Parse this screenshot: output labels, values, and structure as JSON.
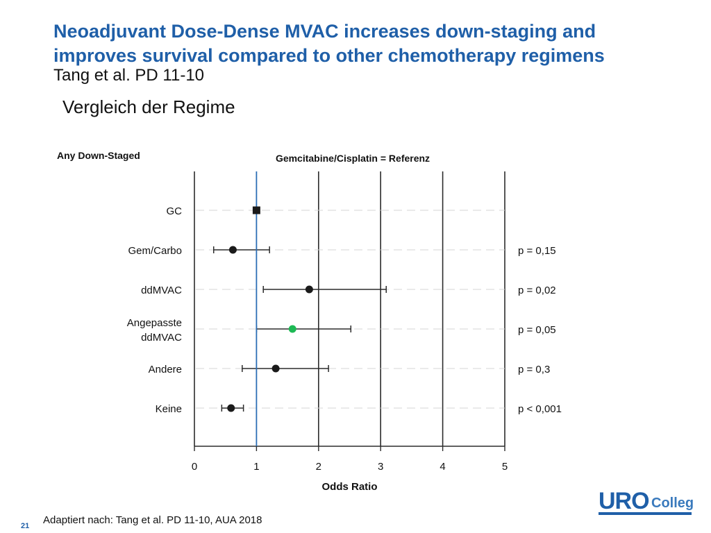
{
  "slide": {
    "title_line1": "Neoadjuvant Dose-Dense MVAC increases down-staging and",
    "title_line2": "improves survival compared to other chemotherapy regimens",
    "reference": "Tang et al. PD 11-10",
    "subtitle": "Vergleich der Regime",
    "footnote": "Adaptiert nach: Tang et al. PD 11-10, AUA 2018",
    "page_number": "21",
    "logo_uro": "URO",
    "logo_colleg": "Colleg"
  },
  "colors": {
    "title": "#1f5fa8",
    "reference_line": "#2a6db5",
    "highlight_point": "#1db954",
    "point": "#1a1a1a"
  },
  "chart_data": {
    "type": "forest",
    "panel_label": "Any Down-Staged",
    "title": "Gemcitabine/Cisplatin = Referenz",
    "xlabel": "Odds Ratio",
    "xlim": [
      0,
      5
    ],
    "xticks": [
      0,
      1,
      2,
      3,
      4,
      5
    ],
    "reference_value": 1,
    "rows": [
      {
        "label": [
          "GC"
        ],
        "or": 1.0,
        "ci_low": null,
        "ci_high": null,
        "p": "",
        "marker": "square",
        "highlight": false
      },
      {
        "label": [
          "Gem/Carbo"
        ],
        "or": 0.62,
        "ci_low": 0.31,
        "ci_high": 1.21,
        "p": "p = 0,15",
        "marker": "circle",
        "highlight": false
      },
      {
        "label": [
          "ddMVAC"
        ],
        "or": 1.85,
        "ci_low": 1.11,
        "ci_high": 3.09,
        "p": "p = 0,02",
        "marker": "circle",
        "highlight": false
      },
      {
        "label": [
          "Angepasste",
          "ddMVAC"
        ],
        "or": 1.58,
        "ci_low": 1.0,
        "ci_high": 2.52,
        "p": "p = 0,05",
        "marker": "circle",
        "highlight": true
      },
      {
        "label": [
          "Andere"
        ],
        "or": 1.31,
        "ci_low": 0.77,
        "ci_high": 2.16,
        "p": "p = 0,3",
        "marker": "circle",
        "highlight": false
      },
      {
        "label": [
          "Keine"
        ],
        "or": 0.59,
        "ci_low": 0.44,
        "ci_high": 0.79,
        "p": "p < 0,001",
        "marker": "circle",
        "highlight": false
      }
    ]
  }
}
